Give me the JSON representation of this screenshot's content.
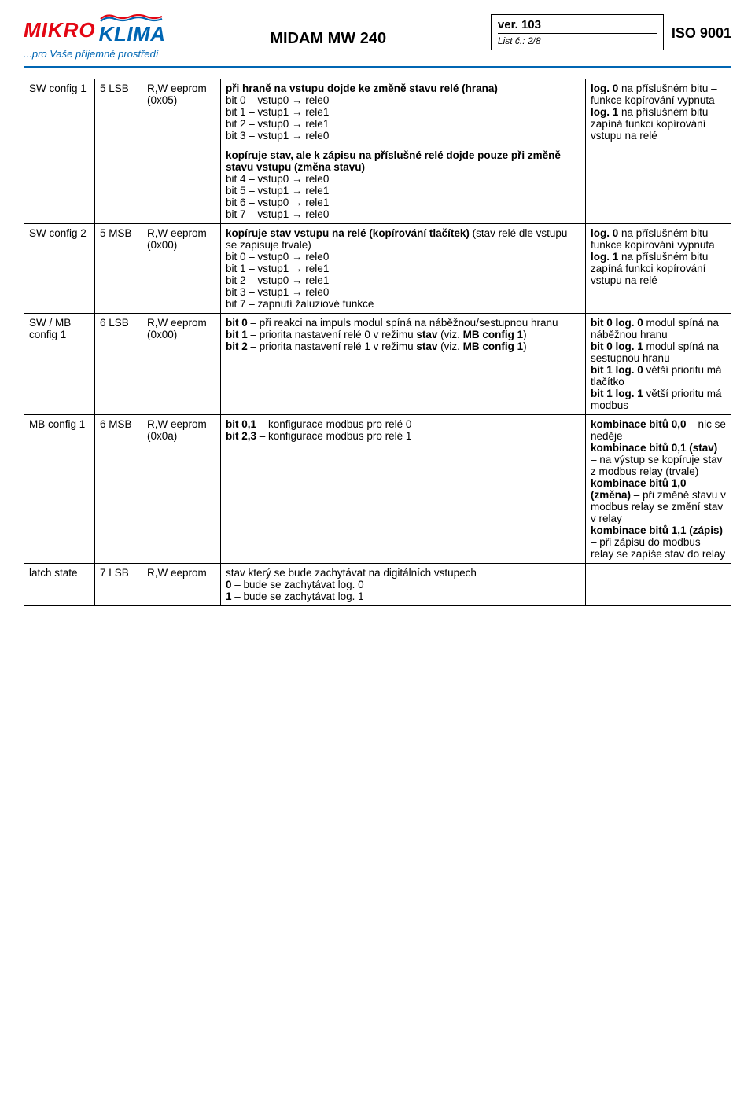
{
  "header": {
    "logo_mikro": "MIKRO",
    "logo_klima": "KLIMA",
    "tagline": "...pro Vaše příjemné prostředí",
    "doc_title": "MIDAM MW 240",
    "version": "ver. 103",
    "list_label": "List č.: ",
    "list_value": "2/8",
    "iso": "ISO 9001",
    "colors": {
      "red": "#e30613",
      "blue": "#0066b3",
      "black": "#000000",
      "white": "#ffffff"
    }
  },
  "rows": [
    {
      "c1": "SW config 1",
      "c2": "5 LSB",
      "c3": "R,W eeprom\n(0x05)",
      "c4_p1_b": "při hraně na vstupu dojde ke změně stavu relé (hrana)",
      "c4_p1_lines": [
        "bit 0 – vstup0 → rele0",
        "bit 1 – vstup1 → rele1",
        "bit 2 – vstup0 → rele1",
        "bit 3 – vstup1 → rele0"
      ],
      "c4_p2_b": "kopíruje stav, ale k zápisu na příslušné relé dojde pouze při změně stavu vstupu (změna stavu)",
      "c4_p2_lines": [
        "bit 4 – vstup0 → rele0",
        "bit 5 – vstup1 → rele1",
        "bit 6 – vstup0 → rele1",
        "bit 7 – vstup1 → rele0"
      ],
      "c5": "log. 0 na příslušném bitu – funkce kopírování vypnuta\nlog. 1 na příslušném bitu zapíná funkci kopírování vstupu na relé"
    },
    {
      "c1": "SW config 2",
      "c2": "5 MSB",
      "c3": "R,W eeprom\n(0x00)",
      "c4_p1_b": "kopíruje stav vstupu na relé (kopírování tlačítek)",
      "c4_p1_plain": " (stav relé dle vstupu se zapisuje trvale)",
      "c4_p1_lines": [
        "bit 0 – vstup0 → rele0",
        "bit 1 – vstup1 → rele1",
        "bit 2 – vstup0 → rele1",
        "bit 3 – vstup1 → rele0",
        "bit 7 – zapnutí žaluziové funkce"
      ],
      "c5": "log. 0 na příslušném bitu – funkce kopírování vypnuta\nlog. 1 na příslušném bitu zapíná funkci kopírování vstupu na relé"
    },
    {
      "c1": "SW / MB config 1",
      "c2": "6 LSB",
      "c3": "R,W eeprom\n(0x00)",
      "c4_html": "<b>bit 0</b> – při reakci na impuls modul spíná na náběžnou/sestupnou hranu<br><b>bit 1</b> – priorita nastavení relé 0 v režimu <b>stav</b> (viz. <b>MB config 1</b>)<br><b>bit 2</b> – priorita nastavení relé 1 v režimu <b>stav</b> (viz. <b>MB config 1</b>)",
      "c5_html": "<b>bit 0 log. 0</b> modul spíná na náběžnou hranu<br><b>bit 0 log. 1</b> modul spíná na sestupnou hranu<br><b>bit 1 log. 0</b> větší prioritu má tlačítko<br><b>bit 1 log. 1</b> větší prioritu má modbus"
    },
    {
      "c1": "MB config 1",
      "c2": "6 MSB",
      "c3": "R,W eeprom\n(0x0a)",
      "c4_html": "<b>bit 0,1</b> – konfigurace modbus pro relé 0<br><b>bit 2,3</b> – konfigurace modbus pro relé 1",
      "c5_html": "<b>kombinace bitů 0,0</b> – nic se neděje<br><b>kombinace bitů 0,1 (stav)</b> – na výstup se kopíruje stav z modbus relay (trvale)<br><b>kombinace bitů 1,0 (změna)</b> – při změně stavu v modbus relay se změní stav v relay<br><b>kombinace bitů 1,1 (zápis)</b> – při zápisu do modbus relay se zapíše stav do relay"
    },
    {
      "c1": "latch state",
      "c2": "7 LSB",
      "c3": "R,W eeprom",
      "c4_html": "stav který se bude zachytávat na digitálních vstupech<br><b>0</b> – bude se zachytávat log. 0<br><b>1</b> – bude se zachytávat log. 1",
      "c5_html": ""
    }
  ],
  "font_sizes": {
    "table": 13.5,
    "title": 20,
    "version": 15,
    "list": 12,
    "iso": 18,
    "tagline": 13,
    "logo": 26
  }
}
